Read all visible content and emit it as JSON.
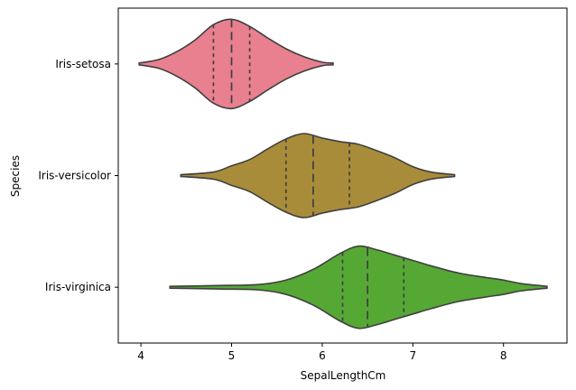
{
  "chart_data": {
    "type": "violin",
    "orientation": "horizontal",
    "xlabel": "SepalLengthCm",
    "ylabel": "Species",
    "xlim": [
      3.75,
      8.7
    ],
    "x_ticks": [
      4,
      5,
      6,
      7,
      8
    ],
    "categories": [
      "Iris-setosa",
      "Iris-versicolor",
      "Iris-virginica"
    ],
    "inner": "quartile",
    "outline_color": "#3f3f3f",
    "grid": false,
    "series": [
      {
        "category": "Iris-setosa",
        "color": "#e8808f",
        "min": 3.98,
        "max": 6.12,
        "quartiles": [
          4.8,
          5.0,
          5.2
        ],
        "density": [
          [
            3.98,
            0.01
          ],
          [
            4.2,
            0.05
          ],
          [
            4.4,
            0.14
          ],
          [
            4.6,
            0.27
          ],
          [
            4.8,
            0.44
          ],
          [
            5.0,
            0.5
          ],
          [
            5.2,
            0.42
          ],
          [
            5.4,
            0.29
          ],
          [
            5.6,
            0.17
          ],
          [
            5.8,
            0.08
          ],
          [
            6.0,
            0.02
          ],
          [
            6.12,
            0.01
          ]
        ]
      },
      {
        "category": "Iris-versicolor",
        "color": "#a88c3a",
        "min": 4.44,
        "max": 7.46,
        "quartiles": [
          5.6,
          5.9,
          6.3
        ],
        "density": [
          [
            4.44,
            0.01
          ],
          [
            4.8,
            0.04
          ],
          [
            5.0,
            0.11
          ],
          [
            5.2,
            0.18
          ],
          [
            5.4,
            0.3
          ],
          [
            5.6,
            0.41
          ],
          [
            5.8,
            0.47
          ],
          [
            6.0,
            0.42
          ],
          [
            6.2,
            0.38
          ],
          [
            6.4,
            0.35
          ],
          [
            6.6,
            0.28
          ],
          [
            6.8,
            0.2
          ],
          [
            7.0,
            0.1
          ],
          [
            7.2,
            0.04
          ],
          [
            7.46,
            0.01
          ]
        ]
      },
      {
        "category": "Iris-virginica",
        "color": "#56a835",
        "min": 4.32,
        "max": 8.48,
        "quartiles": [
          6.225,
          6.5,
          6.9
        ],
        "density": [
          [
            4.32,
            0.01
          ],
          [
            4.9,
            0.02
          ],
          [
            5.3,
            0.03
          ],
          [
            5.6,
            0.08
          ],
          [
            5.9,
            0.2
          ],
          [
            6.2,
            0.38
          ],
          [
            6.4,
            0.46
          ],
          [
            6.6,
            0.42
          ],
          [
            6.8,
            0.36
          ],
          [
            7.0,
            0.3
          ],
          [
            7.2,
            0.24
          ],
          [
            7.5,
            0.16
          ],
          [
            7.8,
            0.11
          ],
          [
            8.0,
            0.08
          ],
          [
            8.2,
            0.04
          ],
          [
            8.48,
            0.01
          ]
        ]
      }
    ]
  }
}
